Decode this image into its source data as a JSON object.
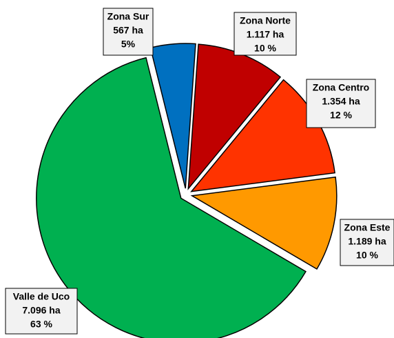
{
  "chart_data": {
    "type": "pie",
    "categories": [
      "Zona Sur",
      "Zona Norte",
      "Zona Centro",
      "Zona Este",
      "Valle de Uco"
    ],
    "values": [
      567,
      1117,
      1354,
      1189,
      7096
    ],
    "value_labels": [
      "567 ha",
      "1.117 ha",
      "1.354 ha",
      "1.189  ha",
      "7.096 ha"
    ],
    "percents": [
      5,
      10,
      12,
      10,
      63
    ],
    "percent_labels": [
      "5%",
      "10 %",
      "12 %",
      "10 %",
      "63 %"
    ],
    "colors": [
      "#0070c0",
      "#c00000",
      "#ff3300",
      "#ff9900",
      "#00b050"
    ],
    "exploded": true
  }
}
